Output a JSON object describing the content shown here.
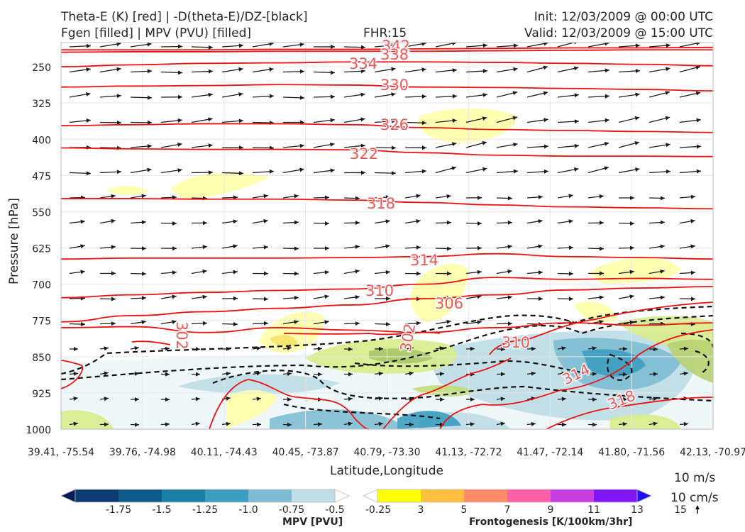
{
  "header": {
    "title_line1_left": "Theta-E (K) [red] | -D(theta-E)/DZ-[black]",
    "title_line2_left": "Fgen [filled] | MPV (PVU) [filled]",
    "fhr": "FHR:15",
    "init": "Init: 12/03/2009 @ 00:00 UTC",
    "valid": "Valid: 12/03/2009 @ 15:00 UTC"
  },
  "chart_data": {
    "type": "cross-section",
    "xlabel": "Latitude,Longitude",
    "ylabel": "Pressure [hPa]",
    "x_ticks": [
      "39.41, -75.54",
      "39.76, -74.98",
      "40.11, -74.43",
      "40.45, -73.87",
      "40.79, -73.30",
      "41.13, -72.72",
      "41.47, -72.14",
      "41.80, -71.56",
      "42.13, -70.97"
    ],
    "y_ticks": [
      250,
      325,
      400,
      475,
      550,
      625,
      700,
      775,
      850,
      925,
      1000
    ],
    "ylim": [
      1000,
      200
    ],
    "grid": true,
    "theta_e_contours": [
      {
        "label": "342",
        "level": 342,
        "p": [
          215,
          215,
          215,
          214,
          214,
          213,
          212,
          211,
          211,
          210
        ]
      },
      {
        "label": "338",
        "level": 338,
        "p": [
          220,
          219,
          219,
          218,
          218,
          218,
          217,
          216,
          215,
          215
        ]
      },
      {
        "label": "334",
        "level": 334,
        "p": [
          250,
          246,
          243,
          242,
          240,
          240,
          241,
          243,
          245,
          248
        ]
      },
      {
        "label": "330",
        "level": 330,
        "p": [
          292,
          290,
          289,
          287,
          288,
          292,
          293,
          295,
          297,
          300
        ]
      },
      {
        "label": "326",
        "level": 326,
        "p": [
          372,
          370,
          368,
          368,
          370,
          376,
          380,
          382,
          384,
          386
        ]
      },
      {
        "label": "322",
        "level": 322,
        "p": [
          418,
          420,
          421,
          421,
          422,
          428,
          433,
          435,
          435,
          436
        ]
      },
      {
        "label": "318",
        "level": 318,
        "p": [
          523,
          523,
          524,
          524,
          526,
          531,
          536,
          540,
          542,
          544
        ]
      },
      {
        "label": "314",
        "level": 314,
        "p": [
          648,
          646,
          646,
          646,
          645,
          643,
          637,
          643,
          645,
          648
        ]
      },
      {
        "label": "310",
        "level": 310,
        "p": [
          728,
          722,
          717,
          713,
          710,
          700,
          686,
          690,
          688,
          690
        ]
      },
      {
        "label": "306",
        "level": 306,
        "p": [
          778,
          765,
          757,
          750,
          743,
          730,
          722,
          712,
          708,
          705
        ]
      },
      {
        "label": "302",
        "level": 302,
        "p": [
          790,
          788,
          800,
          790,
          795,
          800,
          790,
          780,
          785,
          780
        ]
      }
    ],
    "contour_labels_shown": [
      "342",
      "338",
      "334",
      "330",
      "326",
      "322",
      "318",
      "314",
      "310",
      "306",
      "302",
      "302",
      "310",
      "314",
      "318"
    ],
    "colorbar_mpv": {
      "title": "MPV [PVU]",
      "ticks": [
        "-1.75",
        "-1.5",
        "-1.25",
        "-1.0",
        "-0.75",
        "-0.5",
        "-0.25"
      ],
      "colors": [
        "#081d58",
        "#0b3d73",
        "#0f5a8c",
        "#1b7ea5",
        "#3d9dc0",
        "#7fbcd3",
        "#bedde6",
        "#ffffff"
      ]
    },
    "colorbar_fgen": {
      "title": "Frontogenesis [K/100km/3hr]",
      "ticks": [
        "3",
        "5",
        "7",
        "9",
        "11",
        "13",
        "15"
      ],
      "colors": [
        "#ffffff",
        "#ffff00",
        "#ffc040",
        "#ff8b68",
        "#ff5fa8",
        "#c93ce0",
        "#7f16f5",
        "#2010ff"
      ]
    },
    "wind_reference": {
      "horizontal": "10 m/s",
      "vertical": "10 cm/s"
    }
  }
}
